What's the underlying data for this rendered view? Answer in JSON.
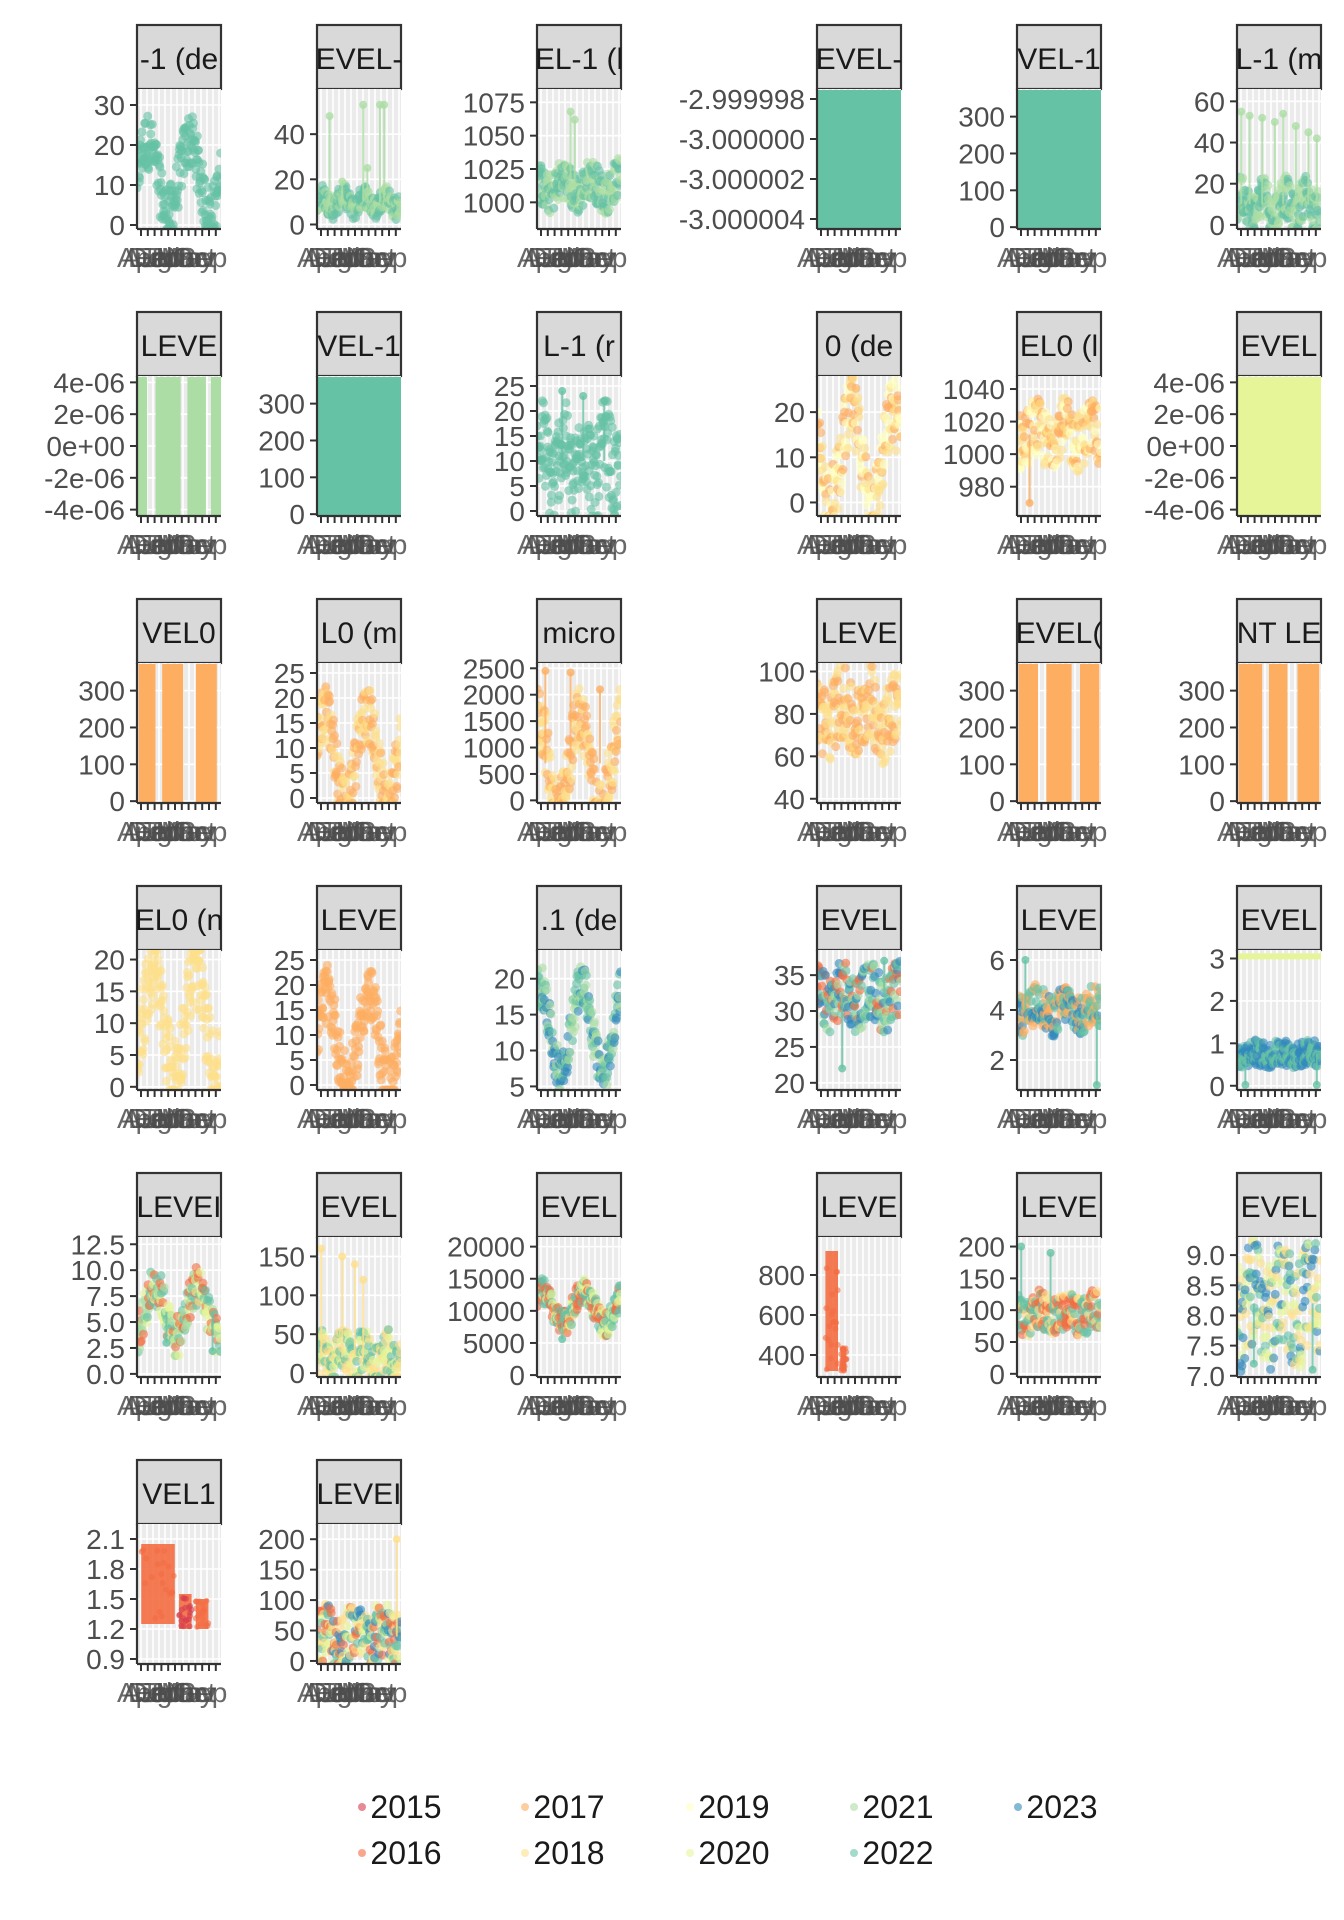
{
  "colors": {
    "2015": "#d53e4f",
    "2016": "#f46d43",
    "2017": "#fdae61",
    "2018": "#fee08b",
    "2019": "#ffffbf",
    "2020": "#e6f598",
    "2021": "#abdda4",
    "2022": "#66c2a5",
    "2023": "#3288bd"
  },
  "legend": {
    "entries": [
      {
        "label": "2015",
        "color": "#d53e4f"
      },
      {
        "label": "2016",
        "color": "#f46d43"
      },
      {
        "label": "2017",
        "color": "#fdae61"
      },
      {
        "label": "2018",
        "color": "#fee08b"
      },
      {
        "label": "2019",
        "color": "#ffffbf"
      },
      {
        "label": "2020",
        "color": "#e6f598"
      },
      {
        "label": "2021",
        "color": "#abdda4"
      },
      {
        "label": "2022",
        "color": "#66c2a5"
      },
      {
        "label": "2023",
        "color": "#3288bd"
      }
    ]
  },
  "chart_data": [
    {
      "type": "scatter",
      "title": "-1 (de",
      "ylim": [
        -1,
        34
      ],
      "yticks": [
        0,
        10,
        20,
        30
      ],
      "yticklabels": [
        "0",
        "10",
        "20",
        "30"
      ],
      "pattern": "bands",
      "params": {
        "years": [
          "2022"
        ],
        "base": 12,
        "amp": 9,
        "spread": 7,
        "spikes": []
      }
    },
    {
      "type": "scatter",
      "title": "EVEL-",
      "ylim": [
        -2,
        60
      ],
      "yticks": [
        0,
        20,
        40
      ],
      "yticklabels": [
        "0",
        "20",
        "40"
      ],
      "pattern": "lowspikes",
      "params": {
        "years": [
          "2021",
          "2022"
        ],
        "base": 10,
        "amp": 3,
        "spread": 5,
        "spikes": [
          [
            0.15,
            48
          ],
          [
            0.55,
            53
          ],
          [
            0.75,
            53
          ],
          [
            0.8,
            53
          ],
          [
            0.3,
            19
          ],
          [
            0.6,
            25
          ]
        ]
      }
    },
    {
      "type": "scatter",
      "title": "EL-1 (l",
      "ylim": [
        980,
        1085
      ],
      "yticks": [
        1000,
        1025,
        1050,
        1075
      ],
      "yticklabels": [
        "1000",
        "1025",
        "1050",
        "1075"
      ],
      "pattern": "noise",
      "params": {
        "years": [
          "2021",
          "2022"
        ],
        "base": 1012,
        "amp": 12,
        "spread": 15,
        "spikes": [
          [
            0.4,
            1068
          ],
          [
            0.45,
            1062
          ]
        ]
      }
    },
    {
      "type": "scatter",
      "title": "EVEL-",
      "ylim": [
        -3.0000045,
        -2.9999975
      ],
      "yticks": [
        -3.000004,
        -3.000002,
        -3.0,
        -2.999998
      ],
      "yticklabels": [
        "-3.000004",
        "-3.000002",
        "-3.000000",
        "-2.999998"
      ],
      "pattern": "full",
      "params": {
        "years": [
          "2022"
        ]
      }
    },
    {
      "type": "scatter",
      "title": "VEL-1",
      "ylim": [
        -5,
        375
      ],
      "yticks": [
        0,
        100,
        200,
        300
      ],
      "yticklabels": [
        "0",
        "100",
        "200",
        "300"
      ],
      "pattern": "full",
      "params": {
        "years": [
          "2022"
        ]
      }
    },
    {
      "type": "scatter",
      "title": "L-1 (m",
      "ylim": [
        -2,
        66
      ],
      "yticks": [
        0,
        20,
        40,
        60
      ],
      "yticklabels": [
        "0",
        "20",
        "40",
        "60"
      ],
      "pattern": "lowspikes",
      "params": {
        "years": [
          "2021",
          "2022"
        ],
        "base": 10,
        "amp": 5,
        "spread": 10,
        "spikes": [
          [
            0.05,
            55
          ],
          [
            0.15,
            53
          ],
          [
            0.3,
            52
          ],
          [
            0.45,
            50
          ],
          [
            0.55,
            54
          ],
          [
            0.7,
            48
          ],
          [
            0.85,
            45
          ],
          [
            0.95,
            42
          ]
        ]
      }
    },
    {
      "type": "scatter",
      "title": "LEVE",
      "ylim": [
        -4.4e-06,
        4.4e-06
      ],
      "yticks": [
        -4e-06,
        -2e-06,
        0,
        2e-06,
        4e-06
      ],
      "yticklabels": [
        "-4e-06",
        "-2e-06",
        "0e+00",
        "2e-06",
        "4e-06"
      ],
      "pattern": "stripes",
      "params": {
        "years": [
          "2021"
        ],
        "stripes": [
          [
            0,
            0.12
          ],
          [
            0.22,
            0.52
          ],
          [
            0.6,
            0.82
          ],
          [
            0.88,
            1.0
          ]
        ]
      }
    },
    {
      "type": "scatter",
      "title": "VEL-1",
      "ylim": [
        -5,
        375
      ],
      "yticks": [
        0,
        100,
        200,
        300
      ],
      "yticklabels": [
        "0",
        "100",
        "200",
        "300"
      ],
      "pattern": "full",
      "params": {
        "years": [
          "2022"
        ]
      }
    },
    {
      "type": "scatter",
      "title": "L-1 (r",
      "ylim": [
        -1,
        27
      ],
      "yticks": [
        0,
        5,
        10,
        15,
        20,
        25
      ],
      "yticklabels": [
        "0",
        "5",
        "10",
        "15",
        "20",
        "25"
      ],
      "pattern": "lowspikes",
      "params": {
        "years": [
          "2022"
        ],
        "base": 10,
        "amp": 4,
        "spread": 9,
        "spikes": [
          [
            0.3,
            24
          ],
          [
            0.55,
            23
          ],
          [
            0.8,
            22
          ]
        ]
      }
    },
    {
      "type": "scatter",
      "title": "0 (de",
      "ylim": [
        -3,
        28
      ],
      "yticks": [
        0,
        10,
        20
      ],
      "yticklabels": [
        "0",
        "10",
        "20"
      ],
      "pattern": "bands",
      "params": {
        "years": [
          "2017",
          "2018",
          "2019"
        ],
        "base": 10,
        "amp": 10,
        "spread": 8,
        "spikes": []
      }
    },
    {
      "type": "scatter",
      "title": "EL0 (l",
      "ylim": [
        962,
        1048
      ],
      "yticks": [
        980,
        1000,
        1020,
        1040
      ],
      "yticklabels": [
        "980",
        "1000",
        "1020",
        "1040"
      ],
      "pattern": "noise",
      "params": {
        "years": [
          "2017",
          "2018",
          "2019"
        ],
        "base": 1012,
        "amp": 10,
        "spread": 18,
        "spikes": [
          [
            0.15,
            970
          ]
        ]
      }
    },
    {
      "type": "scatter",
      "title": "EVEL",
      "ylim": [
        -4.4e-06,
        4.4e-06
      ],
      "yticks": [
        -4e-06,
        -2e-06,
        0,
        2e-06,
        4e-06
      ],
      "yticklabels": [
        "-4e-06",
        "-2e-06",
        "0e+00",
        "2e-06",
        "4e-06"
      ],
      "pattern": "full",
      "params": {
        "years": [
          "2020"
        ]
      }
    },
    {
      "type": "scatter",
      "title": "VEL0",
      "ylim": [
        -5,
        375
      ],
      "yticks": [
        0,
        100,
        200,
        300
      ],
      "yticklabels": [
        "0",
        "100",
        "200",
        "300"
      ],
      "pattern": "stripes",
      "params": {
        "years": [
          "2017"
        ],
        "stripes": [
          [
            0.02,
            0.22
          ],
          [
            0.3,
            0.55
          ],
          [
            0.7,
            0.95
          ]
        ]
      }
    },
    {
      "type": "scatter",
      "title": "L0 (m",
      "ylim": [
        -1,
        27
      ],
      "yticks": [
        0,
        5,
        10,
        15,
        20,
        25
      ],
      "yticklabels": [
        "0",
        "5",
        "10",
        "15",
        "20",
        "25"
      ],
      "pattern": "bands",
      "params": {
        "years": [
          "2017",
          "2018"
        ],
        "base": 8,
        "amp": 9,
        "spread": 6,
        "spikes": []
      }
    },
    {
      "type": "scatter",
      "title": "micro",
      "ylim": [
        -50,
        2600
      ],
      "yticks": [
        0,
        500,
        1000,
        1500,
        2000,
        2500
      ],
      "yticklabels": [
        "0",
        "500",
        "1000",
        "1500",
        "2000",
        "2500"
      ],
      "pattern": "bands",
      "params": {
        "years": [
          "2017",
          "2018"
        ],
        "base": 700,
        "amp": 900,
        "spread": 600,
        "spikes": [
          [
            0.1,
            2450
          ],
          [
            0.4,
            2420
          ],
          [
            0.75,
            2100
          ]
        ]
      }
    },
    {
      "type": "scatter",
      "title": "LEVE",
      "ylim": [
        38,
        104
      ],
      "yticks": [
        40,
        60,
        80,
        100
      ],
      "yticklabels": [
        "40",
        "60",
        "80",
        "100"
      ],
      "pattern": "noise",
      "params": {
        "years": [
          "2018",
          "2017"
        ],
        "base": 80,
        "amp": 12,
        "spread": 18,
        "spikes": []
      }
    },
    {
      "type": "scatter",
      "title": "EVEL(",
      "ylim": [
        -5,
        375
      ],
      "yticks": [
        0,
        100,
        200,
        300
      ],
      "yticklabels": [
        "0",
        "100",
        "200",
        "300"
      ],
      "pattern": "stripes",
      "params": {
        "years": [
          "2017"
        ],
        "stripes": [
          [
            0.02,
            0.25
          ],
          [
            0.35,
            0.65
          ],
          [
            0.75,
            0.98
          ]
        ]
      }
    },
    {
      "type": "scatter",
      "title": "NT LE",
      "ylim": [
        -5,
        375
      ],
      "yticks": [
        0,
        100,
        200,
        300
      ],
      "yticklabels": [
        "0",
        "100",
        "200",
        "300"
      ],
      "pattern": "stripes",
      "params": {
        "years": [
          "2017"
        ],
        "stripes": [
          [
            0.02,
            0.3
          ],
          [
            0.38,
            0.6
          ],
          [
            0.72,
            0.98
          ]
        ]
      }
    },
    {
      "type": "scatter",
      "title": "EL0 (n",
      "ylim": [
        -0.5,
        21.5
      ],
      "yticks": [
        0,
        5,
        10,
        15,
        20
      ],
      "yticklabels": [
        "0",
        "5",
        "10",
        "15",
        "20"
      ],
      "pattern": "bands",
      "params": {
        "years": [
          "2018"
        ],
        "base": 10,
        "amp": 8,
        "spread": 6,
        "spikes": []
      }
    },
    {
      "type": "scatter",
      "title": "LEVE",
      "ylim": [
        -1,
        27
      ],
      "yticks": [
        0,
        5,
        10,
        15,
        20,
        25
      ],
      "yticklabels": [
        "0",
        "5",
        "10",
        "15",
        "20",
        "25"
      ],
      "pattern": "bands",
      "params": {
        "years": [
          "2017"
        ],
        "base": 9,
        "amp": 9,
        "spread": 6,
        "spikes": []
      }
    },
    {
      "type": "scatter",
      "title": ".1 (de",
      "ylim": [
        4.5,
        24
      ],
      "yticks": [
        5,
        10,
        15,
        20
      ],
      "yticklabels": [
        "5",
        "10",
        "15",
        "20"
      ],
      "pattern": "wave",
      "params": {
        "years": [
          "2022",
          "2021",
          "2023"
        ],
        "base": 13,
        "amp": 6,
        "spread": 3,
        "spikes": []
      }
    },
    {
      "type": "scatter",
      "title": "EVEL",
      "ylim": [
        19,
        38.5
      ],
      "yticks": [
        20,
        25,
        30,
        35
      ],
      "yticklabels": [
        "20",
        "25",
        "30",
        "35"
      ],
      "pattern": "noise",
      "params": {
        "years": [
          "2022",
          "2016",
          "2021",
          "2023"
        ],
        "base": 32,
        "amp": 2,
        "spread": 4,
        "spikes": [
          [
            0.3,
            22
          ],
          [
            0.8,
            37
          ]
        ]
      }
    },
    {
      "type": "scatter",
      "title": "LEVE",
      "ylim": [
        0.8,
        6.4
      ],
      "yticks": [
        2,
        4,
        6
      ],
      "yticklabels": [
        "2",
        "4",
        "6"
      ],
      "pattern": "noise",
      "params": {
        "years": [
          "2022",
          "2017",
          "2023"
        ],
        "base": 4.0,
        "amp": 0.6,
        "spread": 0.8,
        "spikes": [
          [
            0.1,
            6.0
          ],
          [
            0.95,
            1.0
          ]
        ]
      }
    },
    {
      "type": "scatter",
      "title": "EVEL",
      "ylim": [
        -0.1,
        3.2
      ],
      "yticks": [
        0,
        1,
        2,
        3
      ],
      "yticklabels": [
        "0",
        "1",
        "2",
        "3"
      ],
      "pattern": "noise",
      "params": {
        "years": [
          "2022",
          "2023"
        ],
        "base": 0.75,
        "amp": 0.1,
        "spread": 0.3,
        "spikes": [
          [
            0.1,
            0.02
          ],
          [
            0.95,
            0.02
          ]
        ],
        "topline": [
          "2020",
          3.05
        ]
      }
    },
    {
      "type": "scatter",
      "title": "LEVEI",
      "ylim": [
        -0.3,
        13.2
      ],
      "yticks": [
        0,
        2.5,
        5,
        7.5,
        10,
        12.5
      ],
      "yticklabels": [
        "0.0",
        "2.5",
        "5.0",
        "7.5",
        "10.0",
        "12.5"
      ],
      "pattern": "wave",
      "params": {
        "years": [
          "2022",
          "2016",
          "2020",
          "2021"
        ],
        "base": 6,
        "amp": 2.5,
        "spread": 2,
        "spikes": [
          [
            0.35,
            3.0
          ],
          [
            0.9,
            2.2
          ]
        ]
      }
    },
    {
      "type": "scatter",
      "title": "EVEL",
      "ylim": [
        -5,
        175
      ],
      "yticks": [
        0,
        50,
        100,
        150
      ],
      "yticklabels": [
        "0",
        "50",
        "100",
        "150"
      ],
      "pattern": "lowspikes",
      "params": {
        "years": [
          "2018",
          "2020",
          "2022"
        ],
        "base": 20,
        "amp": 15,
        "spread": 30,
        "spikes": [
          [
            0.05,
            160
          ],
          [
            0.3,
            150
          ],
          [
            0.45,
            140
          ],
          [
            0.55,
            120
          ]
        ]
      }
    },
    {
      "type": "scatter",
      "title": "EVEL",
      "ylim": [
        -300,
        21500
      ],
      "yticks": [
        0,
        5000,
        10000,
        15000,
        20000
      ],
      "yticklabels": [
        "0",
        "5000",
        "10000",
        "15000",
        "20000"
      ],
      "pattern": "wave",
      "params": {
        "years": [
          "2022",
          "2016",
          "2020"
        ],
        "base": 10500,
        "amp": 2500,
        "spread": 2000,
        "spikes": [
          [
            0.3,
            5600
          ]
        ]
      }
    },
    {
      "type": "scatter",
      "title": "LEVE",
      "ylim": [
        290,
        990
      ],
      "yticks": [
        400,
        600,
        800
      ],
      "yticklabels": [
        "400",
        "600",
        "800"
      ],
      "pattern": "column",
      "params": {
        "years": [
          "2016"
        ],
        "cols": [
          [
            0.1,
            0.25,
            320,
            920
          ],
          [
            0.28,
            0.35,
            320,
            440
          ]
        ]
      }
    },
    {
      "type": "scatter",
      "title": "LEVE",
      "ylim": [
        -5,
        215
      ],
      "yticks": [
        0,
        50,
        100,
        150,
        200
      ],
      "yticklabels": [
        "0",
        "50",
        "100",
        "150",
        "200"
      ],
      "pattern": "noise",
      "params": {
        "years": [
          "2022",
          "2016",
          "2018"
        ],
        "base": 95,
        "amp": 15,
        "spread": 30,
        "spikes": [
          [
            0.05,
            200
          ],
          [
            0.4,
            190
          ]
        ]
      }
    },
    {
      "type": "scatter",
      "title": "EVEL",
      "ylim": [
        6.98,
        9.3
      ],
      "yticks": [
        7.0,
        7.5,
        8.0,
        8.5,
        9.0
      ],
      "yticklabels": [
        "7.0",
        "7.5",
        "8.0",
        "8.5",
        "9.0"
      ],
      "pattern": "noise",
      "params": {
        "years": [
          "2022",
          "2020",
          "2018",
          "2023"
        ],
        "base": 8.2,
        "amp": 0.5,
        "spread": 0.9,
        "spikes": [
          [
            0.2,
            7.2
          ],
          [
            0.9,
            7.1
          ]
        ]
      }
    },
    {
      "type": "scatter",
      "title": "VEL1",
      "ylim": [
        0.85,
        2.25
      ],
      "yticks": [
        0.9,
        1.2,
        1.5,
        1.8,
        2.1
      ],
      "yticklabels": [
        "0.9",
        "1.2",
        "1.5",
        "1.8",
        "2.1"
      ],
      "pattern": "column",
      "params": {
        "years": [
          "2016",
          "2015"
        ],
        "cols": [
          [
            0.05,
            0.45,
            1.25,
            2.05
          ],
          [
            0.5,
            0.65,
            1.2,
            1.55
          ],
          [
            0.7,
            0.85,
            1.2,
            1.5
          ]
        ]
      }
    },
    {
      "type": "scatter",
      "title": "LEVEI",
      "ylim": [
        -5,
        225
      ],
      "yticks": [
        0,
        50,
        100,
        150,
        200
      ],
      "yticklabels": [
        "0",
        "50",
        "100",
        "150",
        "200"
      ],
      "pattern": "noise",
      "params": {
        "years": [
          "2018",
          "2020",
          "2022",
          "2023",
          "2016"
        ],
        "base": 40,
        "amp": 25,
        "spread": 50,
        "spikes": [
          [
            0.95,
            200
          ]
        ]
      }
    }
  ]
}
